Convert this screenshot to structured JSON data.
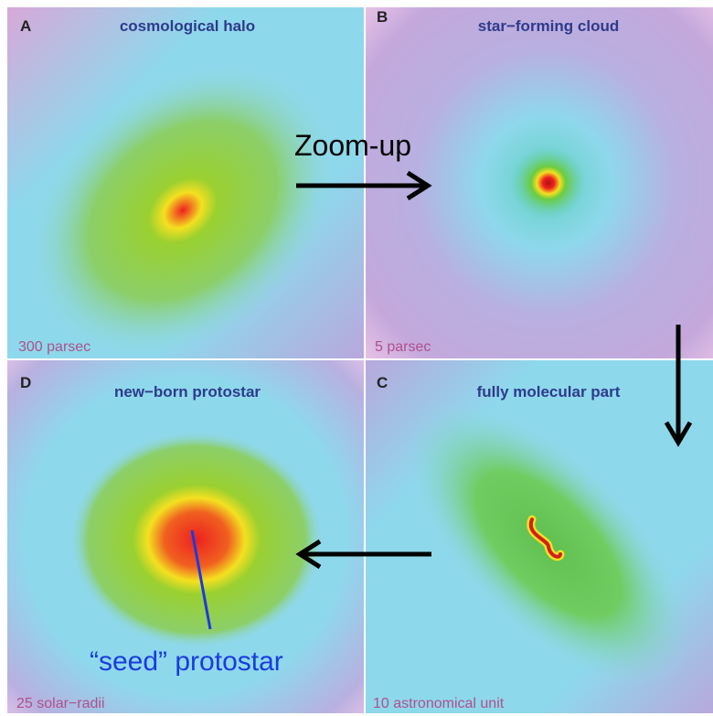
{
  "panels": [
    {
      "letter": "A",
      "title": "cosmological halo",
      "scale": "300 parsec"
    },
    {
      "letter": "B",
      "title": "star−forming cloud",
      "scale": "5 parsec"
    },
    {
      "letter": "D",
      "title": "new−born protostar",
      "scale": "25 solar−radii"
    },
    {
      "letter": "C",
      "title": "fully molecular part",
      "scale": "10 astronomical unit"
    }
  ],
  "annotations": {
    "zoom": "Zoom-up",
    "seed": "“seed” protostar"
  }
}
